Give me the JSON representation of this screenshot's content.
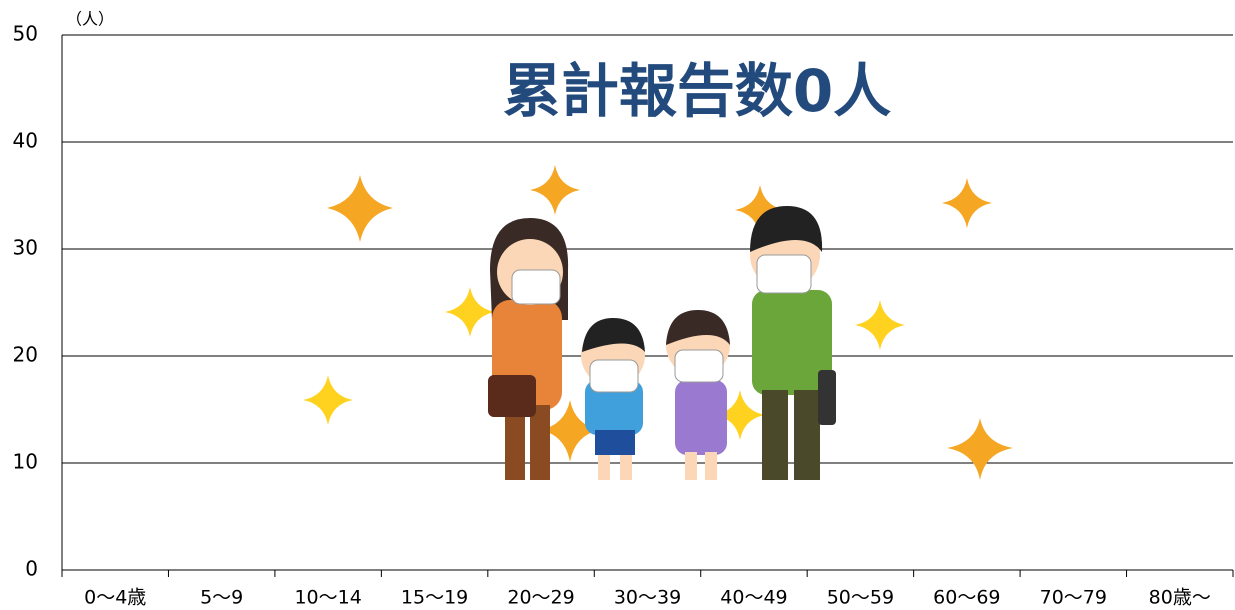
{
  "chart_data": {
    "type": "bar",
    "title": "累計報告数0人",
    "y_unit": "（人）",
    "categories": [
      "0～4歳",
      "5～9",
      "10～14",
      "15～19",
      "20～29",
      "30～39",
      "40～49",
      "50～59",
      "60～69",
      "70～79",
      "80歳～"
    ],
    "values": [
      0,
      0,
      0,
      0,
      0,
      0,
      0,
      0,
      0,
      0,
      0
    ],
    "ylim": [
      0,
      50
    ],
    "yticks": [
      0,
      10,
      20,
      30,
      40,
      50
    ],
    "grid": true
  }
}
